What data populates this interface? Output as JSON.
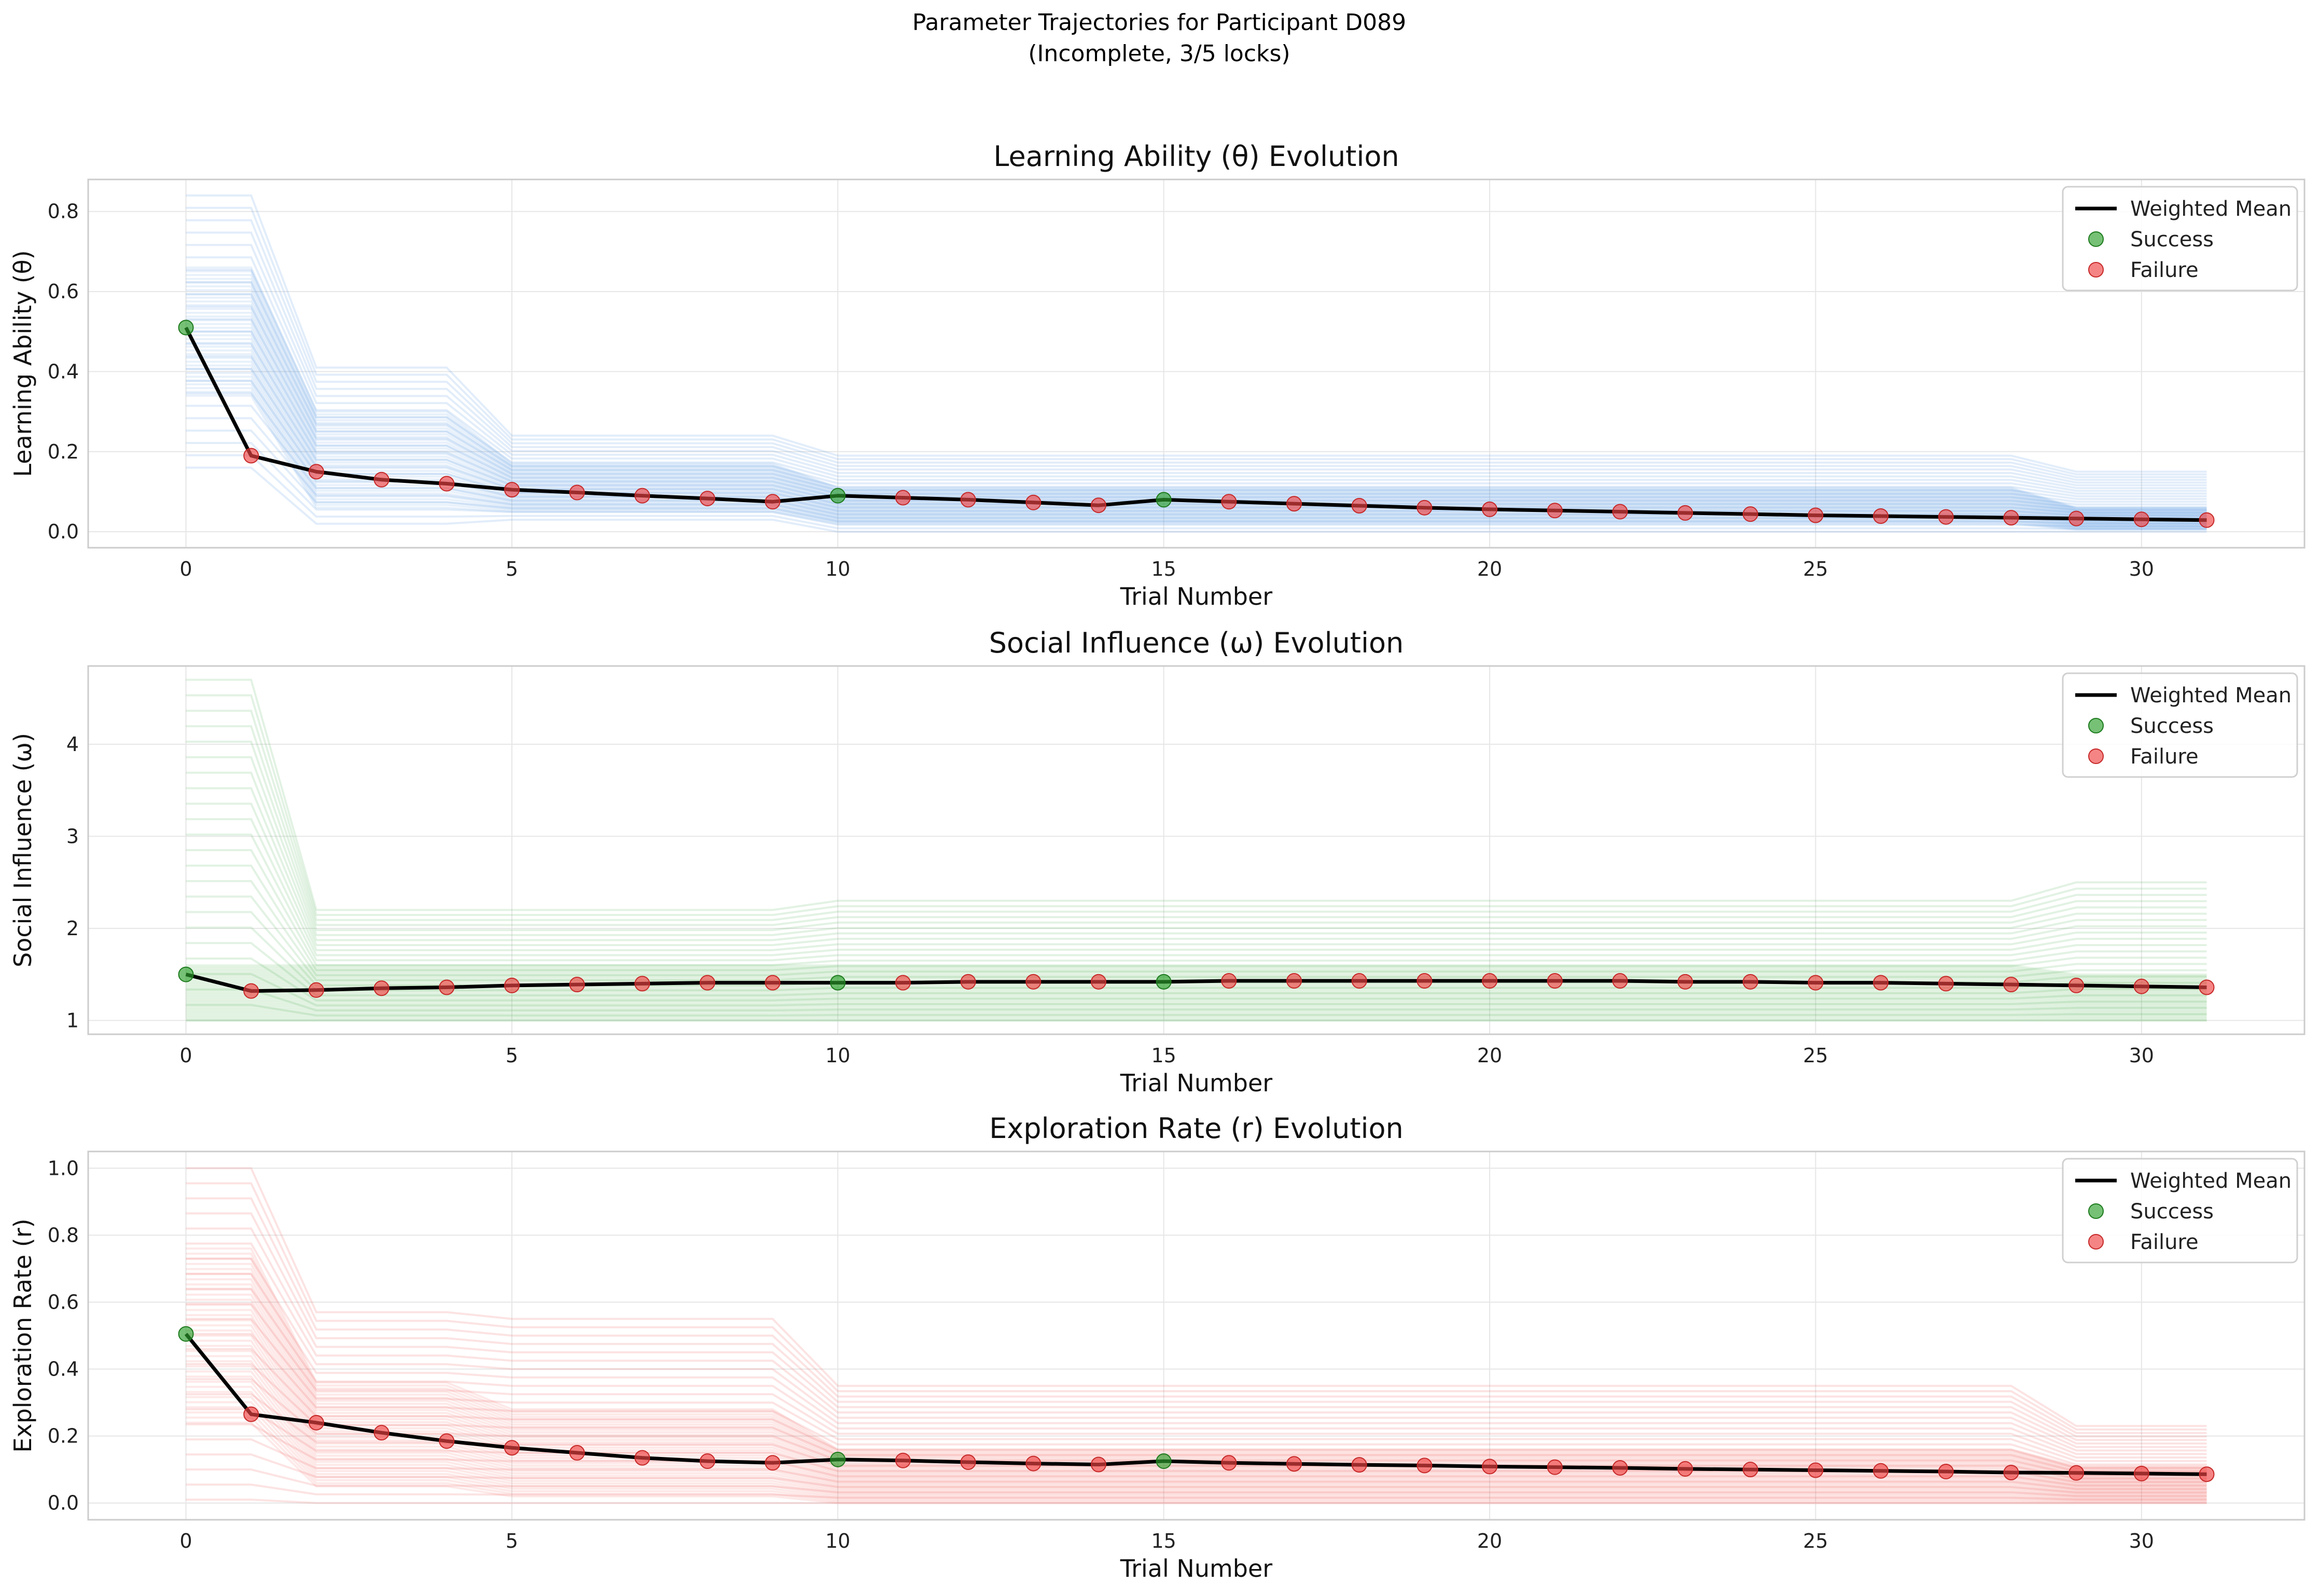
{
  "figure": {
    "suptitle_line1": "Parameter Trajectories for Participant D089",
    "suptitle_line2": "(Incomplete, 3/5 locks)"
  },
  "legend": {
    "mean_label": "Weighted Mean",
    "success_label": "Success",
    "failure_label": "Failure"
  },
  "colors": {
    "mean": "#000000",
    "success": "#2ca02c",
    "failure": "#ef4444",
    "theta_particles": "#4a90e2",
    "omega_particles": "#4caf50",
    "r_particles": "#ef5350",
    "grid": "#e6e6e6",
    "spine": "#cccccc"
  },
  "chart_data": [
    {
      "type": "line",
      "title": "Learning Ability (θ) Evolution",
      "xlabel": "Trial Number",
      "ylabel": "Learning Ability (θ)",
      "xlim": [
        -1.5,
        32.5
      ],
      "ylim": [
        -0.04,
        0.88
      ],
      "xticks": [
        0,
        5,
        10,
        15,
        20,
        25,
        30
      ],
      "yticks": [
        0.0,
        0.2,
        0.4,
        0.6,
        0.8
      ],
      "ytick_labels": [
        "0.0",
        "0.2",
        "0.4",
        "0.6",
        "0.8"
      ],
      "grid": true,
      "legend_position": "upper right",
      "particle_color": "#4a90e2",
      "particle_bands": [
        {
          "x": [
            0,
            1,
            2,
            4,
            5,
            9,
            10,
            28,
            29,
            31
          ],
          "low": [
            0.16,
            0.16,
            0.02,
            0.02,
            0.03,
            0.03,
            0.0,
            0.0,
            0.0,
            0.0
          ],
          "high": [
            0.84,
            0.84,
            0.41,
            0.41,
            0.24,
            0.24,
            0.19,
            0.19,
            0.15,
            0.15
          ]
        },
        {
          "x": [
            0,
            1,
            2,
            4,
            5,
            9,
            10,
            28,
            29,
            31
          ],
          "low": [
            0.34,
            0.34,
            0.06,
            0.06,
            0.05,
            0.05,
            0.02,
            0.02,
            0.005,
            0.005
          ],
          "high": [
            0.66,
            0.66,
            0.3,
            0.3,
            0.17,
            0.17,
            0.11,
            0.11,
            0.06,
            0.06
          ]
        }
      ],
      "weighted_mean": {
        "x": [
          0,
          1,
          2,
          3,
          4,
          5,
          6,
          7,
          8,
          9,
          10,
          11,
          12,
          13,
          14,
          15,
          16,
          17,
          18,
          19,
          20,
          21,
          22,
          23,
          24,
          25,
          26,
          27,
          28,
          29,
          30,
          31
        ],
        "y": [
          0.51,
          0.19,
          0.15,
          0.13,
          0.12,
          0.105,
          0.098,
          0.09,
          0.083,
          0.075,
          0.09,
          0.085,
          0.08,
          0.073,
          0.066,
          0.08,
          0.075,
          0.07,
          0.065,
          0.06,
          0.056,
          0.053,
          0.05,
          0.047,
          0.044,
          0.041,
          0.039,
          0.037,
          0.035,
          0.033,
          0.031,
          0.029
        ]
      },
      "success_trials": [
        0,
        10,
        15
      ]
    },
    {
      "type": "line",
      "title": "Social Influence (ω) Evolution",
      "xlabel": "Trial Number",
      "ylabel": "Social Influence (ω)",
      "xlim": [
        -1.5,
        32.5
      ],
      "ylim": [
        0.85,
        4.85
      ],
      "xticks": [
        0,
        5,
        10,
        15,
        20,
        25,
        30
      ],
      "yticks": [
        1,
        2,
        3,
        4
      ],
      "ytick_labels": [
        "1",
        "2",
        "3",
        "4"
      ],
      "grid": true,
      "legend_position": "upper right",
      "particle_color": "#4caf50",
      "particle_bands": [
        {
          "x": [
            0,
            1,
            2,
            4,
            5,
            9,
            10,
            28,
            29,
            31
          ],
          "low": [
            1.0,
            1.0,
            1.0,
            1.0,
            1.0,
            1.0,
            1.0,
            1.0,
            1.0,
            1.0
          ],
          "high": [
            4.7,
            4.7,
            2.2,
            2.2,
            2.2,
            2.2,
            2.3,
            2.3,
            2.5,
            2.5
          ]
        },
        {
          "x": [
            0,
            1,
            2,
            4,
            5,
            9,
            10,
            28,
            29,
            31
          ],
          "low": [
            1.0,
            1.0,
            1.0,
            1.0,
            1.0,
            1.0,
            1.0,
            1.0,
            1.0,
            1.0
          ],
          "high": [
            1.6,
            1.6,
            1.6,
            1.6,
            1.6,
            1.6,
            1.6,
            1.6,
            1.5,
            1.5
          ]
        }
      ],
      "weighted_mean": {
        "x": [
          0,
          1,
          2,
          3,
          4,
          5,
          6,
          7,
          8,
          9,
          10,
          11,
          12,
          13,
          14,
          15,
          16,
          17,
          18,
          19,
          20,
          21,
          22,
          23,
          24,
          25,
          26,
          27,
          28,
          29,
          30,
          31
        ],
        "y": [
          1.5,
          1.32,
          1.33,
          1.35,
          1.36,
          1.38,
          1.39,
          1.4,
          1.41,
          1.41,
          1.41,
          1.41,
          1.42,
          1.42,
          1.42,
          1.42,
          1.43,
          1.43,
          1.43,
          1.43,
          1.43,
          1.43,
          1.43,
          1.42,
          1.42,
          1.41,
          1.41,
          1.4,
          1.39,
          1.38,
          1.37,
          1.36
        ]
      },
      "success_trials": [
        0,
        10,
        15
      ]
    },
    {
      "type": "line",
      "title": "Exploration Rate (r) Evolution",
      "xlabel": "Trial Number",
      "ylabel": "Exploration Rate (r)",
      "xlim": [
        -1.5,
        32.5
      ],
      "ylim": [
        -0.05,
        1.05
      ],
      "xticks": [
        0,
        5,
        10,
        15,
        20,
        25,
        30
      ],
      "yticks": [
        0.0,
        0.2,
        0.4,
        0.6,
        0.8,
        1.0
      ],
      "ytick_labels": [
        "0.0",
        "0.2",
        "0.4",
        "0.6",
        "0.8",
        "1.0"
      ],
      "grid": true,
      "legend_position": "upper right",
      "particle_color": "#ef5350",
      "particle_bands": [
        {
          "x": [
            0,
            1,
            2,
            4,
            5,
            9,
            10,
            28,
            29,
            31
          ],
          "low": [
            0.01,
            0.01,
            0.0,
            0.0,
            0.0,
            0.0,
            0.0,
            0.0,
            0.0,
            0.0
          ],
          "high": [
            1.0,
            1.0,
            0.57,
            0.57,
            0.55,
            0.55,
            0.35,
            0.35,
            0.23,
            0.23
          ]
        },
        {
          "x": [
            0,
            1,
            2,
            4,
            5,
            9,
            10,
            28,
            29,
            31
          ],
          "low": [
            0.24,
            0.24,
            0.05,
            0.05,
            0.02,
            0.02,
            0.0,
            0.0,
            0.0,
            0.0
          ],
          "high": [
            0.76,
            0.76,
            0.36,
            0.36,
            0.28,
            0.28,
            0.16,
            0.16,
            0.11,
            0.11
          ]
        }
      ],
      "weighted_mean": {
        "x": [
          0,
          1,
          2,
          3,
          4,
          5,
          6,
          7,
          8,
          9,
          10,
          11,
          12,
          13,
          14,
          15,
          16,
          17,
          18,
          19,
          20,
          21,
          22,
          23,
          24,
          25,
          26,
          27,
          28,
          29,
          30,
          31
        ],
        "y": [
          0.505,
          0.265,
          0.24,
          0.21,
          0.185,
          0.165,
          0.15,
          0.135,
          0.125,
          0.12,
          0.13,
          0.127,
          0.122,
          0.118,
          0.115,
          0.125,
          0.12,
          0.117,
          0.114,
          0.112,
          0.109,
          0.107,
          0.105,
          0.102,
          0.1,
          0.098,
          0.096,
          0.094,
          0.091,
          0.09,
          0.088,
          0.086
        ]
      },
      "success_trials": [
        0,
        10,
        15
      ]
    }
  ]
}
